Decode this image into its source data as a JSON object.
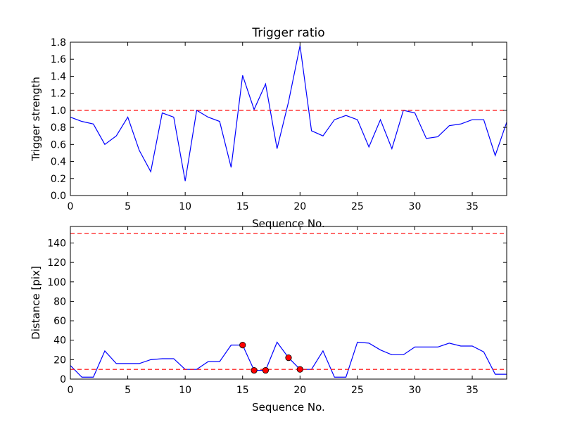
{
  "chart_data": [
    {
      "type": "line",
      "title": "Trigger ratio",
      "xlabel": "Sequence No.",
      "ylabel": "Trigger strength",
      "xlim": [
        0,
        38
      ],
      "ylim": [
        0,
        1.8
      ],
      "xticks": [
        0,
        5,
        10,
        15,
        20,
        25,
        30,
        35
      ],
      "yticks": [
        0.0,
        0.2,
        0.4,
        0.6,
        0.8,
        1.0,
        1.2,
        1.4,
        1.6,
        1.8
      ],
      "ytick_labels": [
        "0.0",
        "0.2",
        "0.4",
        "0.6",
        "0.8",
        "1.0",
        "1.2",
        "1.4",
        "1.6",
        "1.8"
      ],
      "series": [
        {
          "name": "trigger strength",
          "color": "#0000ff",
          "x": [
            0,
            1,
            2,
            3,
            4,
            5,
            6,
            7,
            8,
            9,
            10,
            11,
            12,
            13,
            14,
            15,
            16,
            17,
            18,
            19,
            20,
            21,
            22,
            23,
            24,
            25,
            26,
            27,
            28,
            29,
            30,
            31,
            32,
            33,
            34,
            35,
            36,
            37,
            38
          ],
          "y": [
            0.92,
            0.87,
            0.84,
            0.6,
            0.7,
            0.92,
            0.53,
            0.28,
            0.97,
            0.92,
            0.17,
            1.0,
            0.92,
            0.87,
            0.33,
            1.41,
            1.01,
            1.31,
            0.55,
            1.1,
            1.76,
            0.76,
            0.7,
            0.89,
            0.94,
            0.89,
            0.57,
            0.89,
            0.55,
            1.0,
            0.97,
            0.67,
            0.69,
            0.82,
            0.84,
            0.89,
            0.89,
            0.47,
            0.86
          ]
        }
      ],
      "hlines": [
        {
          "y": 1.0,
          "color": "#ff0000",
          "style": "dashed"
        }
      ]
    },
    {
      "type": "line",
      "title": "",
      "xlabel": "Sequence No.",
      "ylabel": "Distance [pix]",
      "xlim": [
        0,
        38
      ],
      "ylim": [
        0,
        157
      ],
      "xticks": [
        0,
        5,
        10,
        15,
        20,
        25,
        30,
        35
      ],
      "yticks": [
        0,
        20,
        40,
        60,
        80,
        100,
        120,
        140
      ],
      "ytick_labels": [
        "0",
        "20",
        "40",
        "60",
        "80",
        "100",
        "120",
        "140"
      ],
      "series": [
        {
          "name": "distance",
          "color": "#0000ff",
          "x": [
            0,
            1,
            2,
            3,
            4,
            5,
            6,
            7,
            8,
            9,
            10,
            11,
            12,
            13,
            14,
            15,
            16,
            17,
            18,
            19,
            20,
            21,
            22,
            23,
            24,
            25,
            26,
            27,
            28,
            29,
            30,
            31,
            32,
            33,
            34,
            35,
            36,
            37,
            38
          ],
          "y": [
            14,
            2,
            2,
            29,
            16,
            16,
            16,
            20,
            21,
            21,
            10,
            10,
            18,
            18,
            35,
            35,
            9,
            9,
            38,
            22,
            10,
            10,
            29,
            2,
            2,
            38,
            37,
            30,
            25,
            25,
            33,
            33,
            33,
            37,
            34,
            34,
            28,
            5,
            5
          ]
        }
      ],
      "markers": {
        "color": "#ff0000",
        "x": [
          15,
          16,
          17,
          19,
          20
        ],
        "y": [
          35,
          9,
          9,
          22,
          10
        ]
      },
      "hlines": [
        {
          "y": 150,
          "color": "#ff0000",
          "style": "dashed"
        },
        {
          "y": 10,
          "color": "#ff0000",
          "style": "dashed"
        }
      ]
    }
  ]
}
